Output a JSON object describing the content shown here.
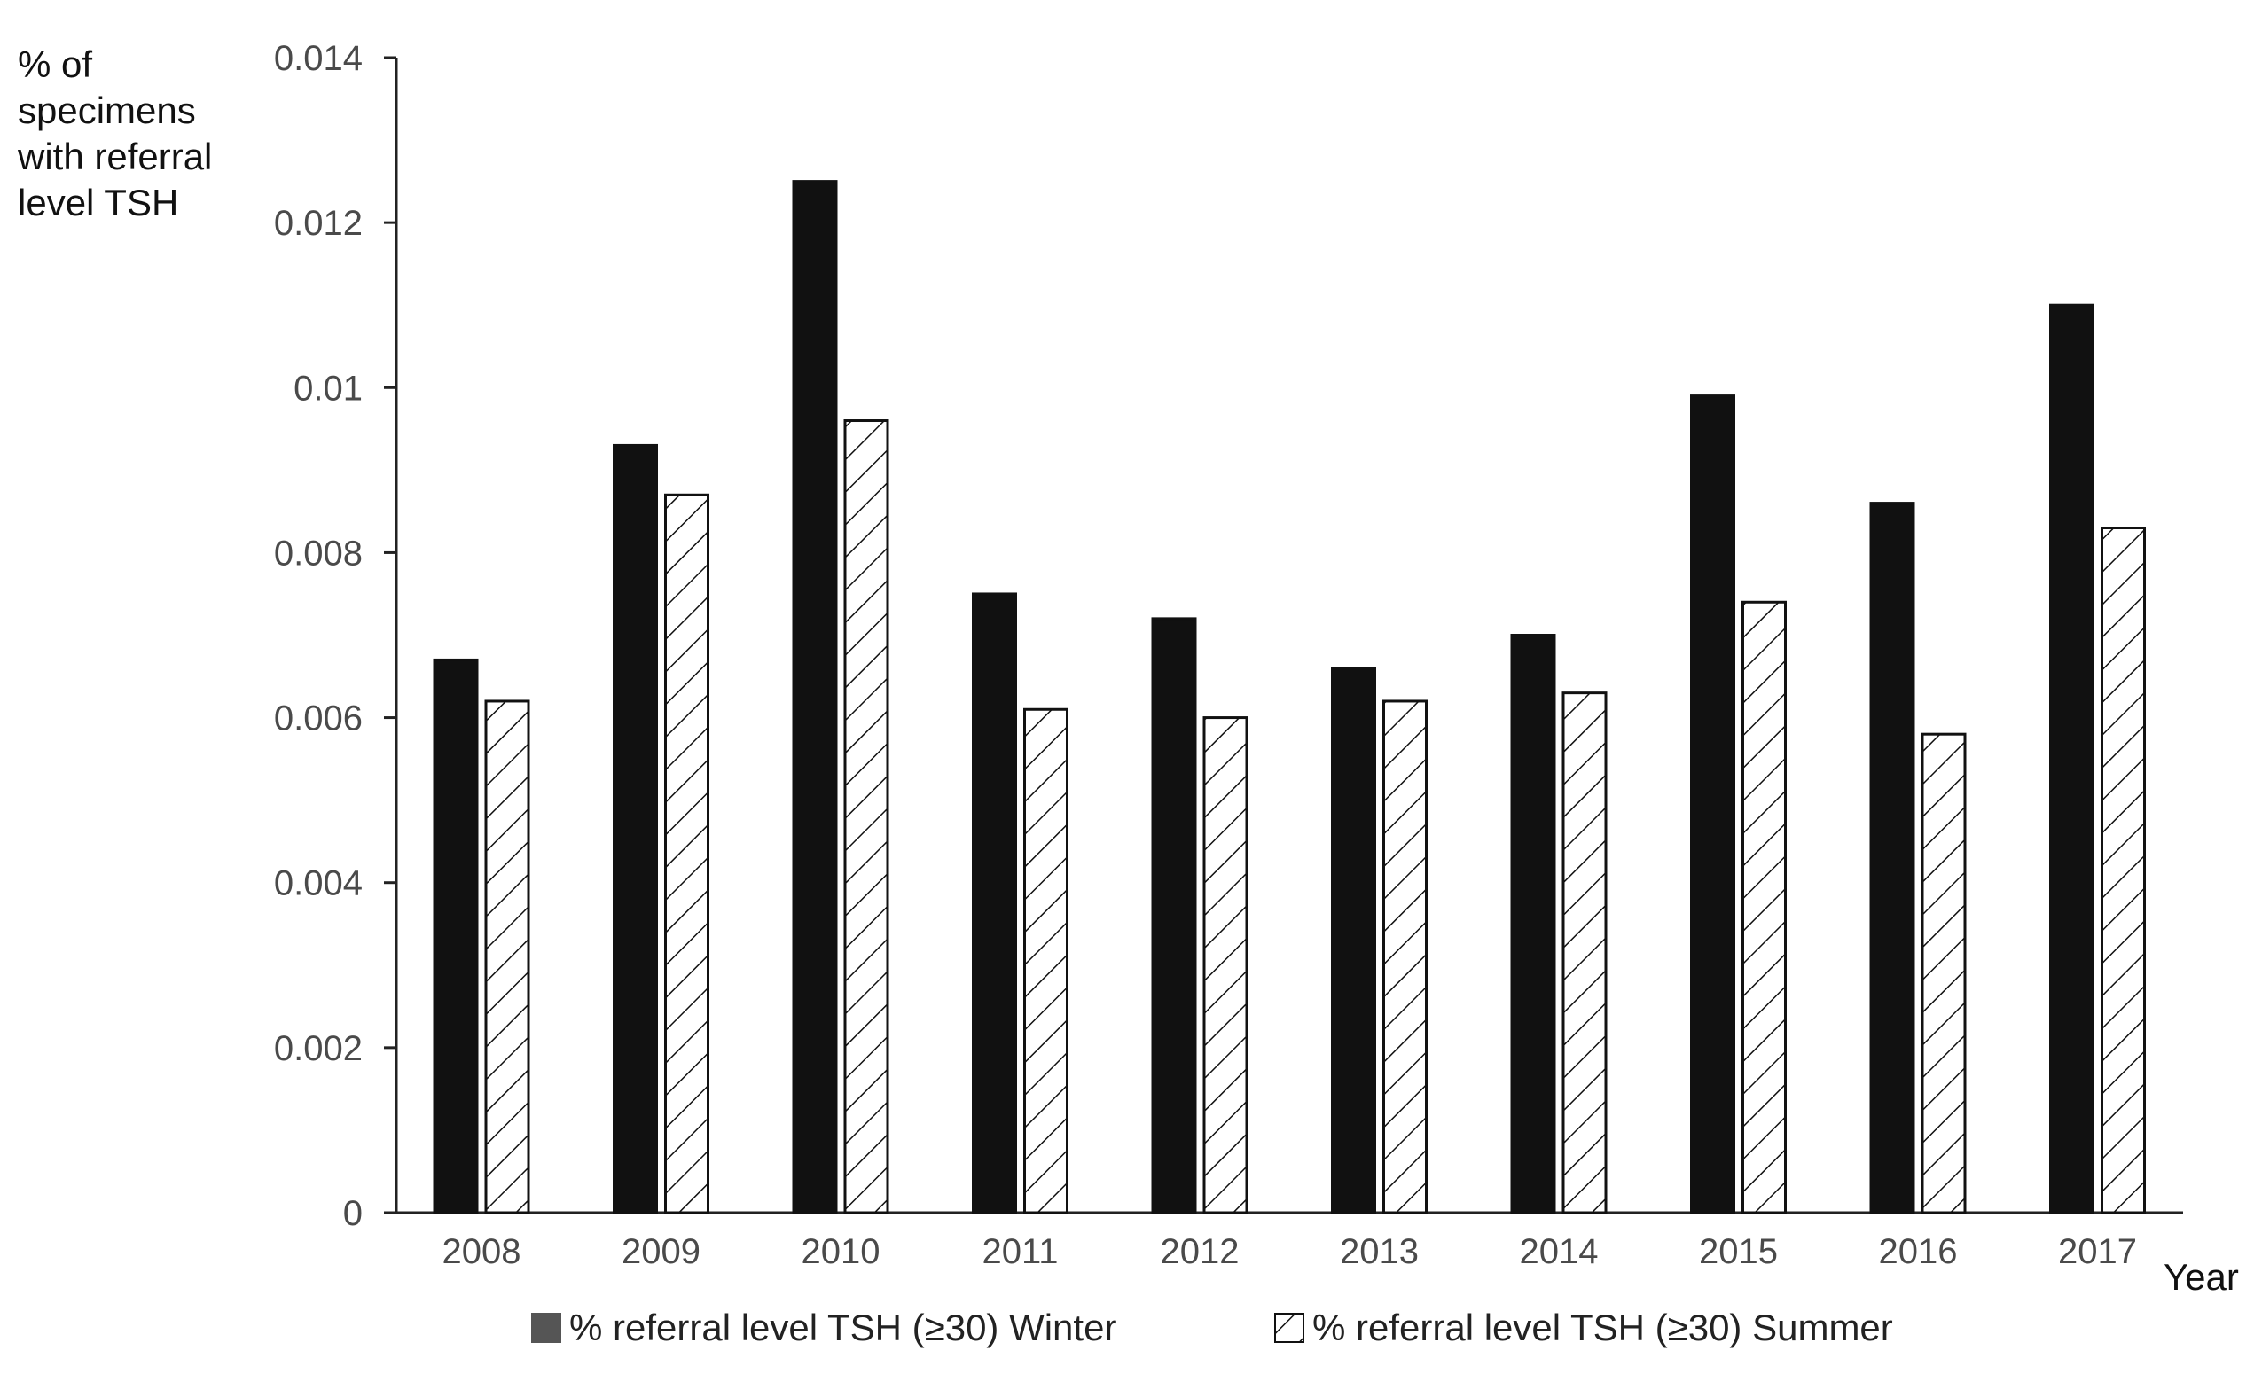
{
  "chart_data": {
    "type": "bar",
    "ylabel_lines": [
      "% of",
      "specimens",
      "with referral",
      "level TSH"
    ],
    "xlabel": "Year",
    "ylim": [
      0,
      0.014
    ],
    "yticks": [
      "0",
      "0.002",
      "0.004",
      "0.006",
      "0.008",
      "0.01",
      "0.012",
      "0.014"
    ],
    "categories": [
      "2008",
      "2009",
      "2010",
      "2011",
      "2012",
      "2013",
      "2014",
      "2015",
      "2016",
      "2017"
    ],
    "series": [
      {
        "name": "% referral level TSH (≥30) Winter",
        "fill": "solid",
        "color": "#111111",
        "values": [
          0.0067,
          0.0093,
          0.0125,
          0.0075,
          0.0072,
          0.0066,
          0.007,
          0.0099,
          0.0086,
          0.011
        ]
      },
      {
        "name": "% referral level TSH (≥30) Summer",
        "fill": "hatched",
        "color": "#111111",
        "values": [
          0.0062,
          0.0087,
          0.0096,
          0.0061,
          0.006,
          0.0062,
          0.0063,
          0.0074,
          0.0058,
          0.0083
        ]
      }
    ],
    "grid": false,
    "legend_position": "bottom"
  }
}
